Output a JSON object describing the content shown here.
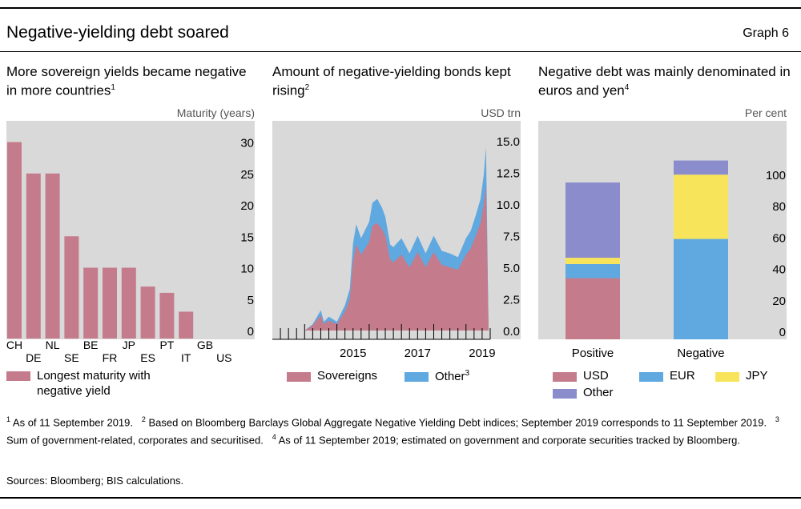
{
  "header": {
    "title": "Negative-yielding debt soared",
    "graph_label": "Graph 6"
  },
  "panels": [
    {
      "title": "More sovereign yields became negative in more countries",
      "title_note": "1",
      "unit": "Maturity (years)"
    },
    {
      "title": "Amount of negative-yielding bonds kept rising",
      "title_note": "2",
      "unit": "USD trn"
    },
    {
      "title": "Negative debt was mainly denominated in euros and yen",
      "title_note": "4",
      "unit": "Per cent"
    }
  ],
  "legends": {
    "maturity": {
      "label": "Longest maturity with negative yield"
    },
    "bonds": [
      {
        "label": "Sovereigns",
        "note": ""
      },
      {
        "label": "Other",
        "note": "3"
      }
    ],
    "currency": [
      {
        "label": "USD"
      },
      {
        "label": "EUR"
      },
      {
        "label": "JPY"
      },
      {
        "label": "Other"
      }
    ]
  },
  "colors": {
    "pink": "#c47c8c",
    "blue": "#5fa8e0",
    "yellow": "#f8e45a",
    "purple": "#8a8ccb",
    "panel_bg": "#d9d9d9"
  },
  "chart_data": [
    {
      "type": "bar",
      "categories": [
        "CH",
        "DE",
        "NL",
        "SE",
        "BE",
        "FR",
        "JP",
        "ES",
        "PT",
        "IT",
        "GB",
        "US"
      ],
      "values": [
        30,
        25,
        25,
        15,
        10,
        10,
        10,
        7,
        6,
        3,
        0,
        0
      ],
      "ylabel": "Maturity (years)",
      "ylim": [
        0,
        30
      ],
      "yticks": [
        0,
        5,
        10,
        15,
        20,
        25,
        30
      ],
      "legend": [
        "Longest maturity with negative yield"
      ]
    },
    {
      "type": "area",
      "stacked": true,
      "ylabel": "USD trn",
      "ylim": [
        0,
        16.5
      ],
      "yticks": [
        "0.0",
        "2.5",
        "5.0",
        "7.5",
        "10.0",
        "12.5",
        "15.0"
      ],
      "xlim": [
        2013.0,
        2019.75
      ],
      "xticks": [
        2015,
        2017,
        2019
      ],
      "x": [
        2014.0,
        2014.25,
        2014.5,
        2014.6,
        2014.75,
        2015.0,
        2015.25,
        2015.4,
        2015.5,
        2015.6,
        2015.75,
        2016.0,
        2016.1,
        2016.25,
        2016.4,
        2016.5,
        2016.65,
        2016.75,
        2017.0,
        2017.25,
        2017.5,
        2017.75,
        2018.0,
        2018.25,
        2018.5,
        2018.75,
        2019.0,
        2019.15,
        2019.3,
        2019.45,
        2019.55,
        2019.62,
        2019.7
      ],
      "series": [
        {
          "name": "Sovereigns",
          "values": [
            0,
            0.4,
            1.2,
            0.5,
            0.8,
            0.5,
            1.5,
            2.5,
            5.5,
            6.8,
            6.0,
            7.0,
            8.3,
            8.5,
            8.0,
            7.5,
            5.6,
            5.4,
            6.0,
            5.0,
            6.2,
            5.0,
            6.2,
            5.2,
            5.0,
            4.8,
            6.0,
            6.5,
            7.5,
            8.5,
            10.0,
            11.5,
            0
          ]
        },
        {
          "name": "Other",
          "values": [
            0,
            0.1,
            0.4,
            0.2,
            0.3,
            0.2,
            0.5,
            0.8,
            1.4,
            1.6,
            1.3,
            1.6,
            1.8,
            1.9,
            1.7,
            1.5,
            1.2,
            1.2,
            1.3,
            1.1,
            1.3,
            1.1,
            1.3,
            1.1,
            1.1,
            1.0,
            1.3,
            1.4,
            1.6,
            1.9,
            2.3,
            3.0,
            0
          ]
        }
      ]
    },
    {
      "type": "bar",
      "stacked": true,
      "categories": [
        "Positive",
        "Negative"
      ],
      "ylabel": "Per cent",
      "ylim": [
        0,
        115
      ],
      "yticks": [
        0,
        20,
        40,
        60,
        80,
        100
      ],
      "series": [
        {
          "name": "USD",
          "values": [
            39,
            0
          ]
        },
        {
          "name": "EUR",
          "values": [
            9,
            64
          ]
        },
        {
          "name": "JPY",
          "values": [
            4,
            41
          ]
        },
        {
          "name": "Other",
          "values": [
            48,
            9
          ]
        }
      ]
    }
  ],
  "footnotes": {
    "line1": [
      {
        "note": "1",
        "text": "As of 11 September 2019."
      },
      {
        "note": "2",
        "text": "Based on Bloomberg Barclays Global Aggregate Negative Yielding Debt indices; September 2019 corresponds to 11 September 2019."
      },
      {
        "note": "3",
        "text": "Sum of government-related, corporates and securitised."
      },
      {
        "note": "4",
        "text": "As of 11 September 2019; estimated on government and corporate securities tracked by Bloomberg."
      }
    ],
    "sources": "Sources: Bloomberg; BIS calculations."
  }
}
